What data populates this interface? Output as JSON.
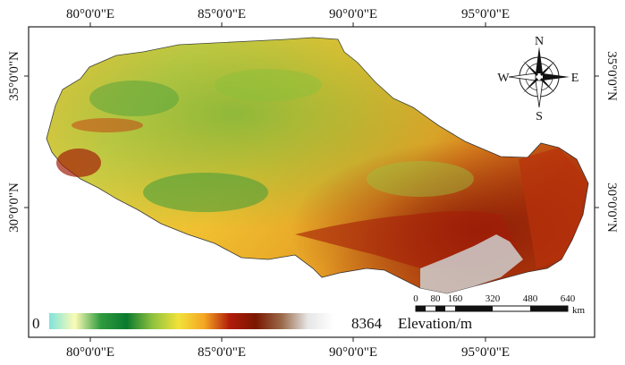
{
  "map": {
    "top_labels": [
      "80°0'0\"E",
      "85°0'0\"E",
      "90°0'0\"E",
      "95°0'0\"E"
    ],
    "bottom_labels": [
      "80°0'0\"E",
      "85°0'0\"E",
      "90°0'0\"E",
      "95°0'0\"E"
    ],
    "left_labels": [
      "35°0'0\"N",
      "30°0'0\"N"
    ],
    "right_labels": [
      "35°0'0\"N",
      "30°0'0\"N"
    ],
    "compass": {
      "n": "N",
      "s": "S",
      "e": "E",
      "w": "W"
    },
    "scale": {
      "ticks": [
        "0",
        "80",
        "160",
        "320",
        "480",
        "640"
      ],
      "unit": "km"
    },
    "legend": {
      "min": "0",
      "max": "8364",
      "label": "Elevation/m",
      "colors": [
        "#7fe3dc",
        "#fbfbb5",
        "#2e9a3e",
        "#0b7a2f",
        "#8fc23e",
        "#f2e23a",
        "#f5a623",
        "#b01a0a",
        "#7a1800",
        "#9a6a4a",
        "#e6e6e6",
        "#ffffff"
      ]
    }
  }
}
